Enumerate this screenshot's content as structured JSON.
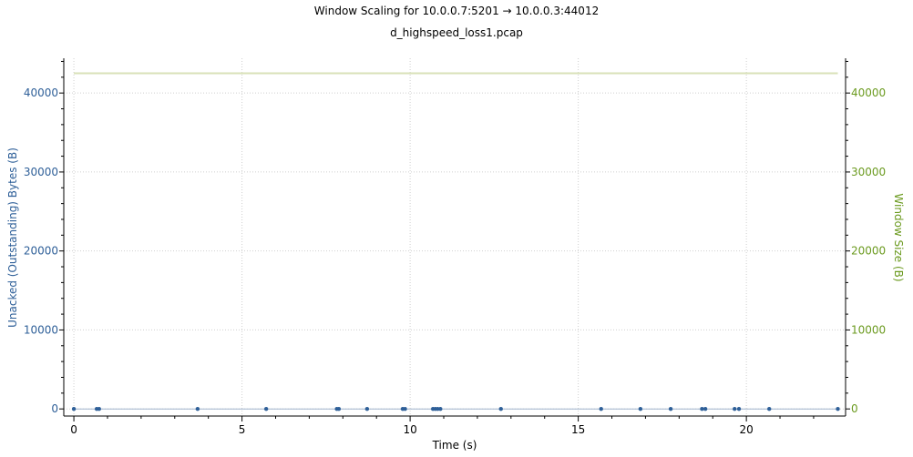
{
  "chart_data": {
    "type": "scatter",
    "title": "Window Scaling for 10.0.0.7:5201 → 10.0.0.3:44012",
    "subtitle": "d_highspeed_loss1.pcap",
    "xlabel": "Time (s)",
    "ylabel_left": "Unacked (Outstanding) Bytes (B)",
    "ylabel_right": "Window Size (B)",
    "xlim": [
      -0.3,
      22.95
    ],
    "ylim": [
      -900,
      44400
    ],
    "x_ticks": [
      0,
      5,
      10,
      15,
      20
    ],
    "x_tick_labels": [
      "0",
      "5",
      "10",
      "15",
      "20"
    ],
    "y_ticks": [
      0,
      10000,
      20000,
      30000,
      40000
    ],
    "y_tick_labels": [
      "0",
      "10000",
      "20000",
      "30000",
      "40000"
    ],
    "x_minor_step": 1,
    "y_minor_step": 2000,
    "grid": true,
    "colors": {
      "left_axis": "#2e5f98",
      "right_axis": "#6b9a1f",
      "unacked_points": "#2e5f98",
      "unacked_line": "#9fb4cc",
      "window_line": "#d9e2b8",
      "grid": "#cfcfcf",
      "axis": "#000000"
    },
    "series": [
      {
        "role": "unacked",
        "axis": "left",
        "x": [
          0.0,
          0.68,
          0.75,
          3.68,
          5.72,
          7.82,
          7.88,
          8.72,
          9.78,
          9.85,
          10.68,
          10.75,
          10.82,
          10.9,
          12.7,
          15.68,
          16.85,
          17.75,
          18.68,
          18.78,
          19.65,
          19.78,
          20.68,
          22.72
        ],
        "y": [
          0,
          0,
          0,
          0,
          0,
          0,
          0,
          0,
          0,
          0,
          0,
          0,
          0,
          0,
          0,
          0,
          0,
          0,
          0,
          0,
          0,
          0,
          0,
          0
        ]
      },
      {
        "role": "window",
        "axis": "right",
        "x": [
          0.0,
          22.72
        ],
        "y": [
          42496,
          42496
        ]
      }
    ]
  }
}
